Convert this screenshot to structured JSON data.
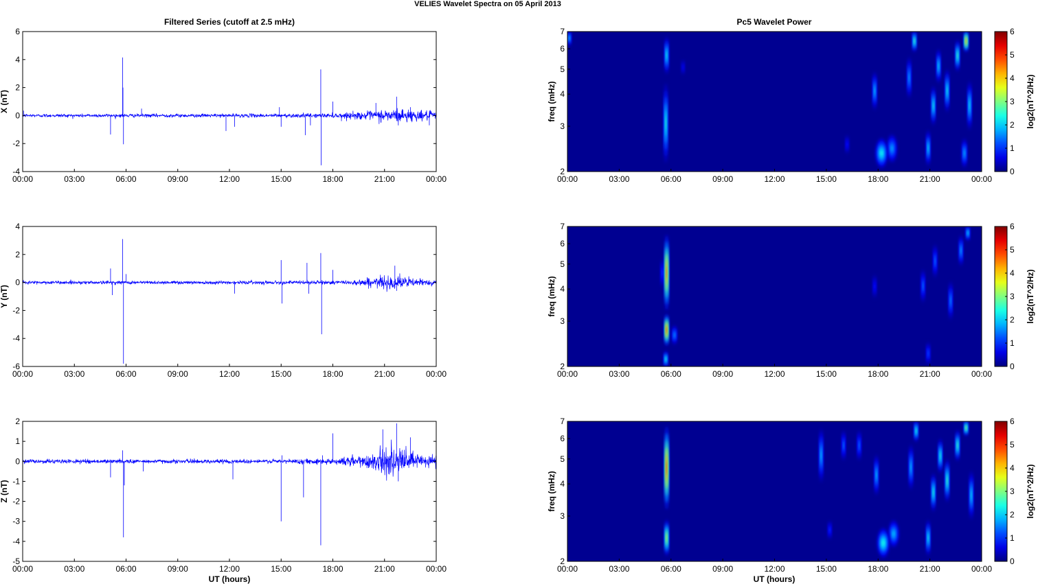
{
  "figure": {
    "suptitle": "VELIES Wavelet Spectra on 05 April     2013",
    "left_title": "Filtered Series (cutoff at 2.5 mHz)",
    "right_title": "Pc5 Wavelet Power",
    "xlabel": "UT (hours)"
  },
  "chart_data": [
    {
      "type": "line",
      "panel": "X",
      "ylabel": "X (nT)",
      "x_ticks": [
        "00:00",
        "03:00",
        "06:00",
        "09:00",
        "12:00",
        "15:00",
        "18:00",
        "21:00",
        "00:00"
      ],
      "xlim_hours": [
        0,
        24
      ],
      "ylim": [
        -4,
        6
      ],
      "y_ticks": [
        -4,
        -2,
        0,
        2,
        4,
        6
      ],
      "color": "#0000ff",
      "noise_envelope": [
        [
          0,
          0.12
        ],
        [
          12,
          0.12
        ],
        [
          18,
          0.15
        ],
        [
          20,
          0.3
        ],
        [
          21,
          0.45
        ],
        [
          22,
          0.5
        ],
        [
          23,
          0.35
        ],
        [
          24,
          0.3
        ]
      ],
      "spikes": [
        {
          "t": 0.05,
          "v": 0.35
        },
        {
          "t": 5.1,
          "v": -1.35
        },
        {
          "t": 5.8,
          "v": 4.15
        },
        {
          "t": 5.82,
          "v": 2.0
        },
        {
          "t": 5.85,
          "v": -2.05
        },
        {
          "t": 6.9,
          "v": 0.5
        },
        {
          "t": 11.8,
          "v": -1.1
        },
        {
          "t": 12.3,
          "v": -0.8
        },
        {
          "t": 15.0,
          "v": -0.8
        },
        {
          "t": 14.9,
          "v": 0.6
        },
        {
          "t": 16.4,
          "v": -1.4
        },
        {
          "t": 16.7,
          "v": -0.7
        },
        {
          "t": 17.3,
          "v": 3.3
        },
        {
          "t": 17.32,
          "v": -3.55
        },
        {
          "t": 18.0,
          "v": 1.0
        },
        {
          "t": 18.5,
          "v": -0.4
        },
        {
          "t": 20.5,
          "v": 0.9
        },
        {
          "t": 20.8,
          "v": -0.5
        },
        {
          "t": 21.7,
          "v": 1.35
        },
        {
          "t": 21.8,
          "v": -0.7
        },
        {
          "t": 22.5,
          "v": 0.6
        },
        {
          "t": 23.6,
          "v": -0.7
        }
      ]
    },
    {
      "type": "line",
      "panel": "Y",
      "ylabel": "Y (nT)",
      "x_ticks": [
        "00:00",
        "03:00",
        "06:00",
        "09:00",
        "12:00",
        "15:00",
        "18:00",
        "21:00",
        "00:00"
      ],
      "xlim_hours": [
        0,
        24
      ],
      "ylim": [
        -6,
        4
      ],
      "y_ticks": [
        -6,
        -4,
        -2,
        0,
        2,
        4
      ],
      "color": "#0000ff",
      "noise_envelope": [
        [
          0,
          0.12
        ],
        [
          15,
          0.12
        ],
        [
          19,
          0.15
        ],
        [
          20,
          0.3
        ],
        [
          21,
          0.45
        ],
        [
          22,
          0.45
        ],
        [
          23,
          0.25
        ],
        [
          24,
          0.2
        ]
      ],
      "spikes": [
        {
          "t": 5.1,
          "v": 1.0
        },
        {
          "t": 5.2,
          "v": -0.9
        },
        {
          "t": 5.8,
          "v": 3.1
        },
        {
          "t": 5.85,
          "v": -5.8
        },
        {
          "t": 6.0,
          "v": 0.6
        },
        {
          "t": 12.3,
          "v": -0.8
        },
        {
          "t": 15.0,
          "v": 1.6
        },
        {
          "t": 15.05,
          "v": -1.5
        },
        {
          "t": 16.5,
          "v": 1.4
        },
        {
          "t": 16.6,
          "v": -0.8
        },
        {
          "t": 17.3,
          "v": 2.1
        },
        {
          "t": 17.35,
          "v": -3.7
        },
        {
          "t": 18.0,
          "v": 0.9
        },
        {
          "t": 21.6,
          "v": 1.2
        },
        {
          "t": 21.7,
          "v": -0.6
        }
      ]
    },
    {
      "type": "line",
      "panel": "Z",
      "ylabel": "Z (nT)",
      "x_ticks": [
        "00:00",
        "03:00",
        "06:00",
        "09:00",
        "12:00",
        "15:00",
        "18:00",
        "21:00",
        "00:00"
      ],
      "xlim_hours": [
        0,
        24
      ],
      "ylim": [
        -5,
        2
      ],
      "y_ticks": [
        -5,
        -4,
        -3,
        -2,
        -1,
        0,
        1,
        2
      ],
      "color": "#0000ff",
      "noise_envelope": [
        [
          0,
          0.1
        ],
        [
          15,
          0.1
        ],
        [
          18,
          0.15
        ],
        [
          19,
          0.25
        ],
        [
          20,
          0.4
        ],
        [
          21,
          0.6
        ],
        [
          22,
          0.6
        ],
        [
          23,
          0.4
        ],
        [
          24,
          0.35
        ]
      ],
      "spikes": [
        {
          "t": 5.1,
          "v": -0.8
        },
        {
          "t": 5.8,
          "v": 0.55
        },
        {
          "t": 5.85,
          "v": -3.8
        },
        {
          "t": 5.9,
          "v": -1.2
        },
        {
          "t": 7.0,
          "v": -0.5
        },
        {
          "t": 12.2,
          "v": -0.9
        },
        {
          "t": 15.0,
          "v": -3.0
        },
        {
          "t": 15.05,
          "v": 0.3
        },
        {
          "t": 16.3,
          "v": -1.8
        },
        {
          "t": 17.3,
          "v": -4.2
        },
        {
          "t": 17.4,
          "v": 0.3
        },
        {
          "t": 18.0,
          "v": 1.4
        },
        {
          "t": 20.9,
          "v": 1.6
        },
        {
          "t": 21.7,
          "v": 1.9
        },
        {
          "t": 21.8,
          "v": -1.0
        },
        {
          "t": 22.5,
          "v": 1.2
        }
      ]
    },
    {
      "type": "heatmap",
      "panel": "X",
      "ylabel": "freq (mHz)",
      "yscale": "log",
      "ylim_mhz": [
        2,
        7
      ],
      "y_ticks": [
        2,
        3,
        4,
        5,
        6,
        7
      ],
      "x_ticks": [
        "00:00",
        "03:00",
        "06:00",
        "09:00",
        "12:00",
        "15:00",
        "18:00",
        "21:00",
        "00:00"
      ],
      "xlim_hours": [
        0,
        24
      ],
      "colorbar_label": "log2(nT^2/Hz)",
      "colorbar_ticks": [
        0,
        1,
        2,
        3,
        4,
        5,
        6
      ],
      "clim": [
        0,
        6
      ],
      "colormap": "jet",
      "blobs": [
        {
          "t": 0.1,
          "f": 6.5,
          "power": 2.2,
          "width_h": 0.05,
          "fspan": 0.6
        },
        {
          "t": 5.7,
          "f": 3.0,
          "power": 2.8,
          "width_h": 0.1,
          "fspan": 1.4
        },
        {
          "t": 5.75,
          "f": 5.5,
          "power": 2.6,
          "width_h": 0.06,
          "fspan": 1.2
        },
        {
          "t": 6.7,
          "f": 5.0,
          "power": 0.8,
          "width_h": 0.08,
          "fspan": 0.5
        },
        {
          "t": 16.2,
          "f": 2.5,
          "power": 1.0,
          "width_h": 0.1,
          "fspan": 0.3
        },
        {
          "t": 17.8,
          "f": 4.0,
          "power": 2.2,
          "width_h": 0.12,
          "fspan": 0.9
        },
        {
          "t": 18.2,
          "f": 2.3,
          "power": 2.4,
          "width_h": 0.35,
          "fspan": 0.4
        },
        {
          "t": 18.8,
          "f": 2.4,
          "power": 1.8,
          "width_h": 0.3,
          "fspan": 0.4
        },
        {
          "t": 19.8,
          "f": 4.5,
          "power": 2.0,
          "width_h": 0.12,
          "fspan": 1.1
        },
        {
          "t": 20.1,
          "f": 6.3,
          "power": 3.0,
          "width_h": 0.08,
          "fspan": 0.8
        },
        {
          "t": 20.9,
          "f": 2.4,
          "power": 2.4,
          "width_h": 0.12,
          "fspan": 0.5
        },
        {
          "t": 21.2,
          "f": 3.5,
          "power": 2.6,
          "width_h": 0.12,
          "fspan": 0.8
        },
        {
          "t": 21.5,
          "f": 5.0,
          "power": 2.4,
          "width_h": 0.1,
          "fspan": 1.0
        },
        {
          "t": 22.0,
          "f": 4.0,
          "power": 2.6,
          "width_h": 0.12,
          "fspan": 1.0
        },
        {
          "t": 22.6,
          "f": 5.5,
          "power": 3.0,
          "width_h": 0.1,
          "fspan": 1.0
        },
        {
          "t": 23.1,
          "f": 6.3,
          "power": 4.8,
          "width_h": 0.12,
          "fspan": 0.8
        },
        {
          "t": 23.3,
          "f": 3.5,
          "power": 2.5,
          "width_h": 0.1,
          "fspan": 1.0
        },
        {
          "t": 23.0,
          "f": 2.3,
          "power": 2.0,
          "width_h": 0.15,
          "fspan": 0.4
        }
      ]
    },
    {
      "type": "heatmap",
      "panel": "Y",
      "ylabel": "freq (mHz)",
      "yscale": "log",
      "ylim_mhz": [
        2,
        7
      ],
      "y_ticks": [
        2,
        3,
        4,
        5,
        6,
        7
      ],
      "x_ticks": [
        "00:00",
        "03:00",
        "06:00",
        "09:00",
        "12:00",
        "15:00",
        "18:00",
        "21:00",
        "00:00"
      ],
      "xlim_hours": [
        0,
        24
      ],
      "colorbar_label": "log2(nT^2/Hz)",
      "colorbar_ticks": [
        0,
        1,
        2,
        3,
        4,
        5,
        6
      ],
      "clim": [
        0,
        6
      ],
      "colormap": "jet",
      "blobs": [
        {
          "t": 5.75,
          "f": 2.7,
          "power": 5.5,
          "width_h": 0.12,
          "fspan": 0.5
        },
        {
          "t": 5.75,
          "f": 4.5,
          "power": 5.2,
          "width_h": 0.08,
          "fspan": 2.0
        },
        {
          "t": 5.7,
          "f": 2.1,
          "power": 2.8,
          "width_h": 0.1,
          "fspan": 0.2
        },
        {
          "t": 6.2,
          "f": 2.6,
          "power": 1.8,
          "width_h": 0.15,
          "fspan": 0.3
        },
        {
          "t": 5.5,
          "f": 4.5,
          "power": 1.2,
          "width_h": 0.06,
          "fspan": 0.8
        },
        {
          "t": 17.8,
          "f": 4.0,
          "power": 1.0,
          "width_h": 0.08,
          "fspan": 0.6
        },
        {
          "t": 20.6,
          "f": 4.0,
          "power": 1.6,
          "width_h": 0.1,
          "fspan": 0.8
        },
        {
          "t": 20.9,
          "f": 2.2,
          "power": 1.4,
          "width_h": 0.1,
          "fspan": 0.3
        },
        {
          "t": 21.3,
          "f": 5.0,
          "power": 1.6,
          "width_h": 0.1,
          "fspan": 1.0
        },
        {
          "t": 22.2,
          "f": 3.5,
          "power": 1.8,
          "width_h": 0.1,
          "fspan": 0.8
        },
        {
          "t": 22.8,
          "f": 5.5,
          "power": 2.0,
          "width_h": 0.1,
          "fspan": 1.0
        },
        {
          "t": 23.2,
          "f": 6.5,
          "power": 2.4,
          "width_h": 0.08,
          "fspan": 0.6
        }
      ]
    },
    {
      "type": "heatmap",
      "panel": "Z",
      "ylabel": "freq (mHz)",
      "yscale": "log",
      "ylim_mhz": [
        2,
        7
      ],
      "y_ticks": [
        2,
        3,
        4,
        5,
        6,
        7
      ],
      "x_ticks": [
        "00:00",
        "03:00",
        "06:00",
        "09:00",
        "12:00",
        "15:00",
        "18:00",
        "21:00",
        "00:00"
      ],
      "xlim_hours": [
        0,
        24
      ],
      "colorbar_label": "log2(nT^2/Hz)",
      "colorbar_ticks": [
        0,
        1,
        2,
        3,
        4,
        5,
        6
      ],
      "clim": [
        0,
        6
      ],
      "colormap": "jet",
      "blobs": [
        {
          "t": 5.75,
          "f": 2.4,
          "power": 4.0,
          "width_h": 0.12,
          "fspan": 0.5
        },
        {
          "t": 5.75,
          "f": 4.5,
          "power": 5.5,
          "width_h": 0.07,
          "fspan": 2.2
        },
        {
          "t": 14.7,
          "f": 5.0,
          "power": 2.2,
          "width_h": 0.07,
          "fspan": 1.6
        },
        {
          "t": 15.2,
          "f": 2.6,
          "power": 1.2,
          "width_h": 0.08,
          "fspan": 0.3
        },
        {
          "t": 16.0,
          "f": 5.5,
          "power": 1.6,
          "width_h": 0.06,
          "fspan": 1.0
        },
        {
          "t": 16.9,
          "f": 5.5,
          "power": 1.6,
          "width_h": 0.06,
          "fspan": 1.0
        },
        {
          "t": 17.9,
          "f": 4.2,
          "power": 2.2,
          "width_h": 0.12,
          "fspan": 1.0
        },
        {
          "t": 18.3,
          "f": 2.3,
          "power": 2.5,
          "width_h": 0.35,
          "fspan": 0.4
        },
        {
          "t": 18.9,
          "f": 2.5,
          "power": 2.0,
          "width_h": 0.3,
          "fspan": 0.4
        },
        {
          "t": 19.9,
          "f": 4.5,
          "power": 2.2,
          "width_h": 0.12,
          "fspan": 1.2
        },
        {
          "t": 20.2,
          "f": 6.3,
          "power": 2.8,
          "width_h": 0.08,
          "fspan": 0.8
        },
        {
          "t": 20.9,
          "f": 2.4,
          "power": 2.6,
          "width_h": 0.12,
          "fspan": 0.5
        },
        {
          "t": 21.2,
          "f": 3.6,
          "power": 2.8,
          "width_h": 0.12,
          "fspan": 0.8
        },
        {
          "t": 21.6,
          "f": 5.0,
          "power": 2.8,
          "width_h": 0.1,
          "fspan": 1.0
        },
        {
          "t": 22.0,
          "f": 4.0,
          "power": 3.0,
          "width_h": 0.12,
          "fspan": 1.0
        },
        {
          "t": 22.6,
          "f": 5.5,
          "power": 3.0,
          "width_h": 0.1,
          "fspan": 1.0
        },
        {
          "t": 23.1,
          "f": 6.5,
          "power": 3.6,
          "width_h": 0.1,
          "fspan": 0.6
        },
        {
          "t": 23.4,
          "f": 3.5,
          "power": 2.4,
          "width_h": 0.1,
          "fspan": 1.0
        }
      ]
    }
  ]
}
